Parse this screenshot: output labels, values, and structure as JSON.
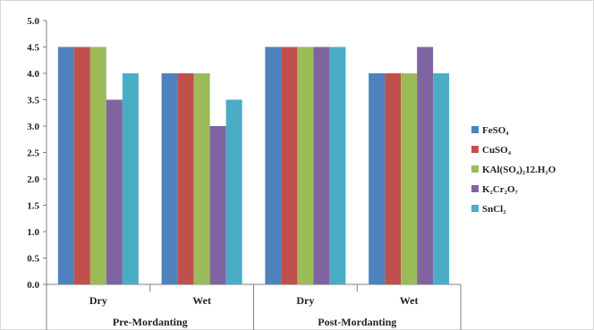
{
  "chart_data": {
    "type": "bar",
    "groups": [
      {
        "label": "Pre-Mordanting",
        "categories": [
          "Dry",
          "Wet"
        ]
      },
      {
        "label": "Post-Mordanting",
        "categories": [
          "Dry",
          "Wet"
        ]
      }
    ],
    "categories": [
      "Dry",
      "Wet",
      "Dry",
      "Wet"
    ],
    "series": [
      {
        "name": "FeSO₄",
        "color": "#4f81bd",
        "values": [
          4.5,
          4.0,
          4.5,
          4.0
        ]
      },
      {
        "name": "CuSO₄",
        "color": "#c0504d",
        "values": [
          4.5,
          4.0,
          4.5,
          4.0
        ]
      },
      {
        "name": "KAl(SO₄)₂12.H₂O",
        "color": "#9bbb59",
        "values": [
          4.5,
          4.0,
          4.5,
          4.0
        ]
      },
      {
        "name": "K₂Cr₂O₇",
        "color": "#8064a2",
        "values": [
          3.5,
          3.0,
          4.5,
          4.5
        ]
      },
      {
        "name": "SnCl₂",
        "color": "#4bacc6",
        "values": [
          4.0,
          3.5,
          4.5,
          4.0
        ]
      }
    ],
    "ylim": [
      0,
      5
    ],
    "yticks": [
      "0.0",
      "0.5",
      "1.0",
      "1.5",
      "2.0",
      "2.5",
      "3.0",
      "3.5",
      "4.0",
      "4.5",
      "5.0"
    ],
    "grid": false,
    "legend_position": "right"
  }
}
